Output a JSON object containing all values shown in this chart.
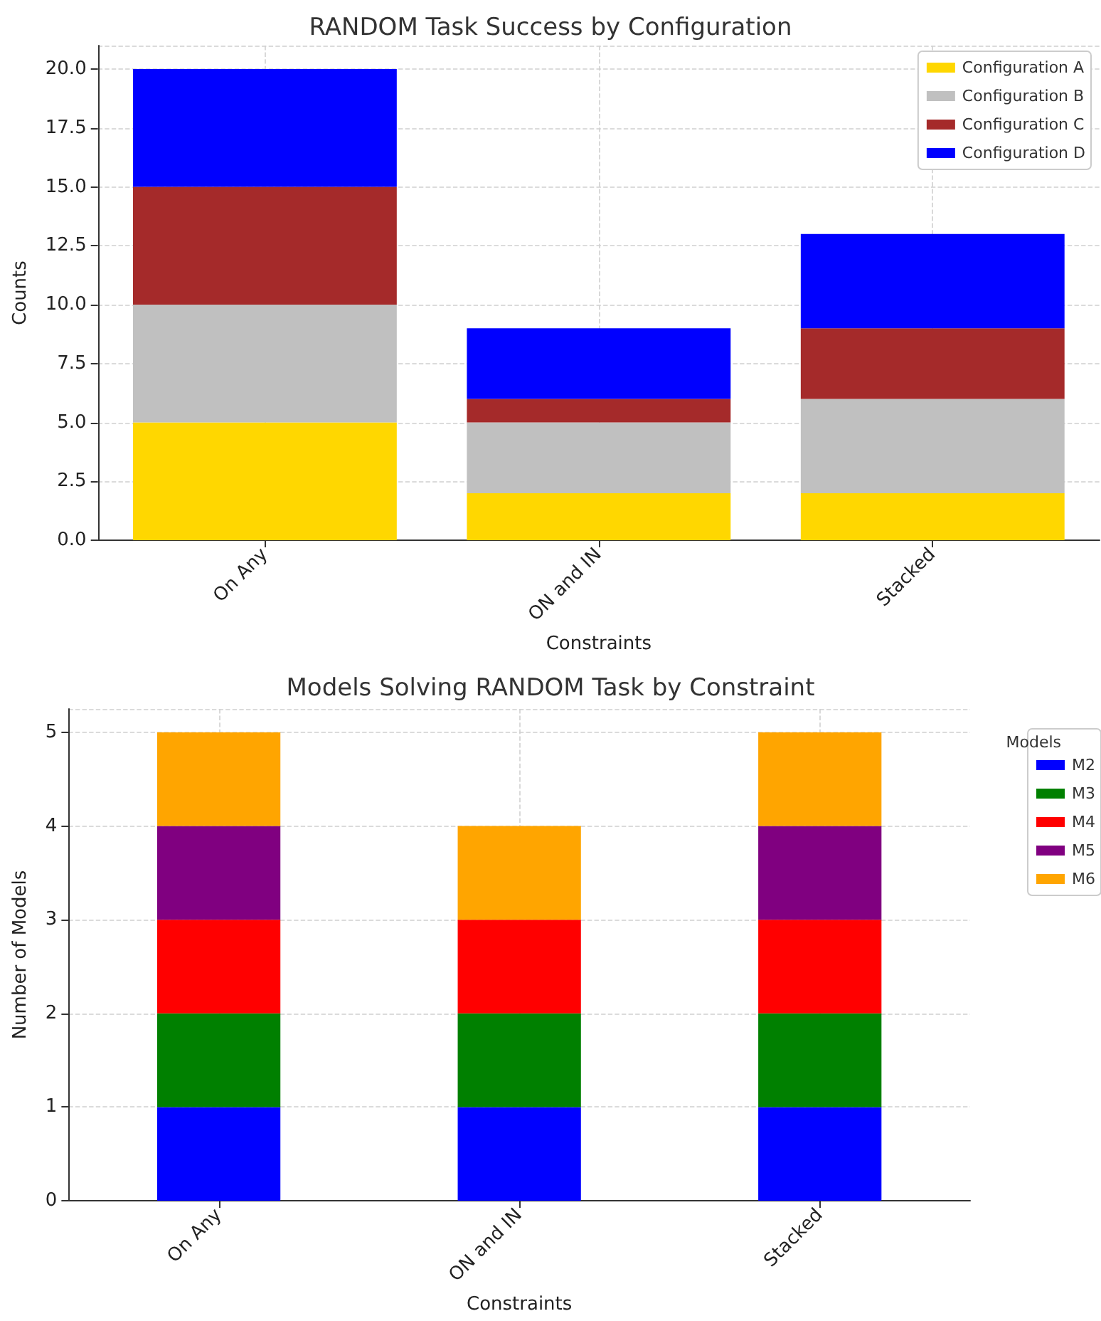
{
  "chart_data": [
    {
      "type": "bar",
      "title": "RANDOM Task Success by Configuration",
      "xlabel": "Constraints",
      "ylabel": "Counts",
      "categories": [
        "On Any",
        "ON and IN",
        "Stacked"
      ],
      "stacked": true,
      "series": [
        {
          "name": "Configuration A",
          "color": "#ffd700",
          "values": [
            5,
            2,
            2
          ]
        },
        {
          "name": "Configuration B",
          "color": "#c0c0c0",
          "values": [
            5,
            3,
            4
          ]
        },
        {
          "name": "Configuration C",
          "color": "#a52a2a",
          "values": [
            5,
            1,
            3
          ]
        },
        {
          "name": "Configuration D",
          "color": "#0000ff",
          "values": [
            5,
            3,
            4
          ]
        }
      ],
      "ylim": [
        0,
        21
      ],
      "yticks": [
        {
          "value": 0,
          "label": "0.0"
        },
        {
          "value": 2.5,
          "label": "2.5"
        },
        {
          "value": 5,
          "label": "5.0"
        },
        {
          "value": 7.5,
          "label": "7.5"
        },
        {
          "value": 10,
          "label": "10.0"
        },
        {
          "value": 12.5,
          "label": "12.5"
        },
        {
          "value": 15,
          "label": "15.0"
        },
        {
          "value": 17.5,
          "label": "17.5"
        },
        {
          "value": 20,
          "label": "20.0"
        }
      ],
      "grid": true,
      "legend": "top right"
    },
    {
      "type": "bar",
      "title": "Models Solving RANDOM Task by Constraint",
      "xlabel": "Constraints",
      "ylabel": "Number of Models",
      "legend_title": "Models",
      "categories": [
        "On Any",
        "ON and IN",
        "Stacked"
      ],
      "stacked": true,
      "series": [
        {
          "name": "M2",
          "color": "#0000ff",
          "values": [
            1,
            1,
            1
          ]
        },
        {
          "name": "M3",
          "color": "#008000",
          "values": [
            1,
            1,
            1
          ]
        },
        {
          "name": "M4",
          "color": "#ff0000",
          "values": [
            1,
            1,
            1
          ]
        },
        {
          "name": "M5",
          "color": "#800080",
          "values": [
            1,
            0,
            1
          ]
        },
        {
          "name": "M6",
          "color": "#ffa500",
          "values": [
            1,
            1,
            1
          ]
        }
      ],
      "ylim": [
        0,
        5.25
      ],
      "yticks": [
        0,
        1,
        2,
        3,
        4,
        5
      ],
      "grid": true,
      "legend": "right"
    }
  ]
}
